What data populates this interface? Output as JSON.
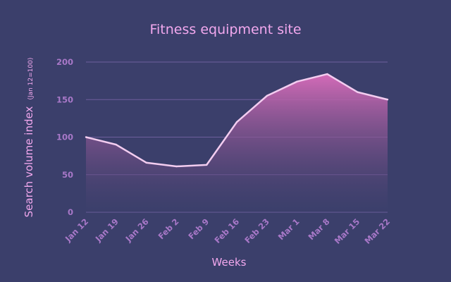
{
  "chart_data": {
    "type": "area",
    "title": "Fitness equipment site",
    "xlabel": "Weeks",
    "ylabel": "Search volume index",
    "ylabel_note": "(Jan 12=100)",
    "categories": [
      "Jan 12",
      "Jan 19",
      "Jan 26",
      "Feb 2",
      "Feb 9",
      "Feb 16",
      "Feb 23",
      "Mar 1",
      "Mar 8",
      "Mar 15",
      "Mar 22"
    ],
    "series": [
      {
        "values": [
          100,
          90,
          66,
          61,
          63,
          120,
          155,
          174,
          184,
          160,
          150
        ]
      }
    ],
    "ylim": [
      0,
      200
    ],
    "yticks": [
      0,
      50,
      100,
      150,
      200
    ],
    "grid": true,
    "legend": "none",
    "colors": {
      "background": "#3b3f6b",
      "line": "#f3cdf0",
      "fill_top": "#d46bb8",
      "fill_bottom": "#3b3f6b",
      "grid": "#6e5f9c",
      "tick_text": "#a878c8",
      "label_text": "#f2a8ee"
    }
  }
}
